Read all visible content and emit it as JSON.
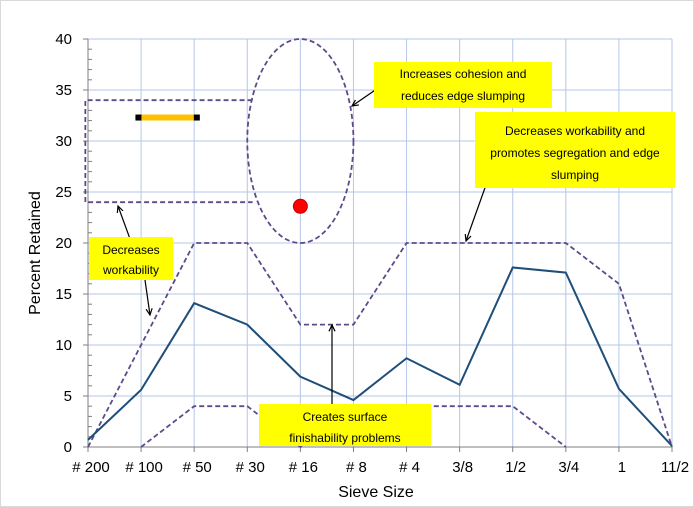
{
  "chart_data": {
    "type": "line",
    "xlabel": "Sieve Size",
    "ylabel": "Percent Retained",
    "categories": [
      "# 200",
      "# 100",
      "# 50",
      "# 30",
      "# 16",
      "# 8",
      "# 4",
      "3/8",
      "1/2",
      "3/4",
      "1",
      "11/2"
    ],
    "ylim": [
      0,
      40
    ],
    "yticks": [
      0,
      5,
      10,
      15,
      20,
      25,
      30,
      35,
      40
    ],
    "grid": true,
    "legend": "none",
    "series": [
      {
        "values": [
          0.7,
          5.6,
          14.1,
          12.0,
          6.9,
          4.6,
          8.7,
          6.1,
          17.6,
          17.1,
          5.7,
          0.1
        ],
        "color": "#1f4e79",
        "style": "solid"
      }
    ],
    "upper_limit_line": {
      "x": [
        0,
        2,
        3,
        4,
        5,
        6,
        7,
        8,
        9,
        10,
        11
      ],
      "values": [
        0,
        20,
        20,
        12,
        12,
        20,
        20,
        20,
        20,
        16,
        0
      ],
      "color": "#5e4a8b",
      "style": "dashed"
    },
    "lower_limit_line": {
      "x": [
        1,
        2,
        3,
        4,
        6,
        7,
        8,
        9
      ],
      "values": [
        0,
        4,
        4,
        0,
        4,
        4,
        4,
        0
      ],
      "color": "#5e4a8b",
      "style": "dashed"
    },
    "legend_box_limits": {
      "x": [
        -0.05,
        3.1
      ],
      "y": [
        24,
        34
      ]
    },
    "ellipse_region": {
      "x_center": 4.0,
      "x_half_width": 1.0,
      "y_range": [
        20,
        40
      ]
    },
    "marker_point": {
      "x": 4.0,
      "y": 23.6,
      "color": "#ff0000"
    },
    "legend_swatch_color": "#ffc000",
    "annotations": [
      {
        "lines": [
          "Increases cohesion and",
          "reduces edge slumping"
        ]
      },
      {
        "lines": [
          "Decreases workability and",
          "promotes segregation and edge",
          "slumping"
        ]
      },
      {
        "lines": [
          "Decreases",
          "workability"
        ]
      },
      {
        "lines": [
          "Creates surface",
          "finishability problems"
        ]
      }
    ],
    "callout_color": "#ffff00"
  }
}
